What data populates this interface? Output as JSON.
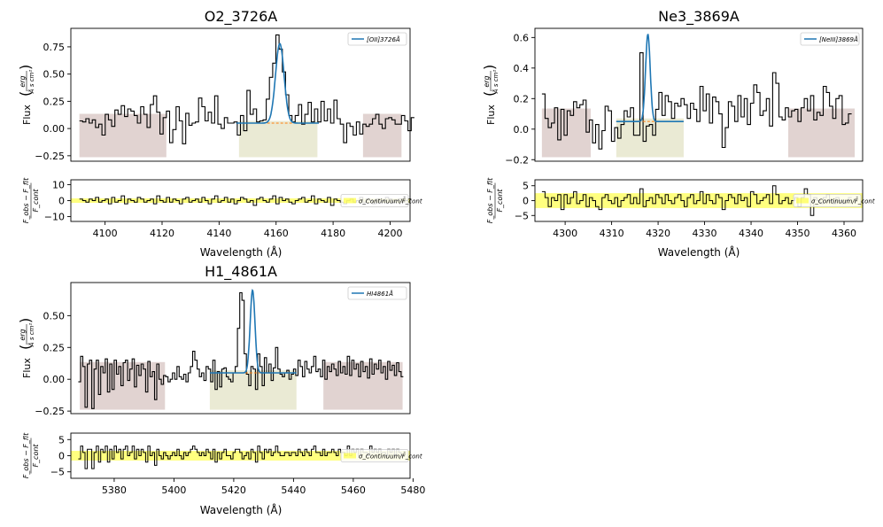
{
  "chart_data": [
    {
      "type": "line",
      "title": "O2_3726A",
      "xlabel": "Wavelength (Å)",
      "ylabel_main": "Flux",
      "ylabel_frac_num": "erg",
      "ylabel_frac_den": "Å s cm²",
      "resid_ylabel_num": "F_obs − F_fit",
      "resid_ylabel_den": "F_cont",
      "legend_main": "[OII]3726Å",
      "legend_resid": "σ_Continuum/F̄_cont",
      "legend_placement": "top-right",
      "xlim": [
        4088,
        4207
      ],
      "ylim": [
        -0.3,
        0.92
      ],
      "resid_ylim": [
        -13,
        13
      ],
      "x_ticks": [
        4100,
        4120,
        4140,
        4160,
        4180,
        4200
      ],
      "y_ticks": [
        -0.25,
        0.0,
        0.25,
        0.5,
        0.75
      ],
      "y_tick_labels": [
        "−0.25",
        "0.00",
        "0.25",
        "0.50",
        "0.75"
      ],
      "resid_ticks": [
        10,
        0,
        -10
      ],
      "resid_tick_labels": [
        "10",
        "0",
        "−10"
      ],
      "continuum_bands": [
        [
          4091,
          4121.5
        ],
        [
          4190.5,
          4204
        ]
      ],
      "line_band": [
        4147,
        4174.5
      ],
      "sigma_band": 1.4,
      "fit_continuum": 0.05,
      "fit_gaussian": {
        "center": 4161.3,
        "amplitude": 0.73,
        "sigma": 1.5,
        "range": [
          4146,
          4175
        ]
      },
      "spectrum": [
        {
          "x0": 4091,
          "dx": 1.13,
          "values": [
            0.07,
            0.06,
            0.09,
            0.05,
            0.08,
            0.01,
            0.04,
            -0.06,
            0.13,
            0.08,
            0.02,
            0.17,
            0.13,
            0.21,
            0.11,
            0.18,
            0.16,
            0.12,
            0.05,
            0.2,
            0.13,
            0.01,
            0.22,
            0.3,
            0.15,
            -0.05,
            0.1,
            0.16,
            -0.13,
            -0.01,
            0.2,
            0.07,
            -0.14,
            0.14,
            0.03,
            0.05,
            0.06,
            0.28,
            0.2,
            0.07,
            0.15,
            0.05,
            0.3,
            0.04,
            0.0,
            0.1,
            0.05,
            0.05,
            0.06,
            -0.06,
            0.12,
            -0.02,
            0.35,
            0.13,
            0.18,
            0.06,
            0.07,
            0.08,
            0.27,
            0.47,
            0.6,
            0.86,
            0.73,
            0.52,
            0.31,
            0.12,
            0.06,
            0.12,
            0.22,
            0.04,
            0.13,
            0.24,
            0.06,
            0.18,
            0.06,
            0.25,
            0.07,
            0.18,
            0.05,
            0.26,
            0.09,
            0.04,
            -0.13,
            0.05,
            0.02,
            -0.06,
            0.06,
            -0.05,
            0.04,
            0.02,
            0.04,
            0.09,
            0.13,
            0.04,
            0.0,
            0.09,
            0.1,
            0.08,
            0.04,
            0.04,
            0.12,
            0.07,
            -0.02,
            0.1
          ]
        }
      ],
      "residuals": [
        1,
        0,
        -1,
        1,
        0,
        2,
        -1,
        0,
        1,
        -2,
        2,
        -1,
        0,
        3,
        -2,
        1,
        0,
        -1,
        2,
        1,
        -1,
        0,
        1,
        -2,
        3,
        0,
        -1,
        2,
        -1,
        1,
        0,
        -2,
        1,
        2,
        -1,
        0,
        1,
        -1,
        2,
        0,
        -2,
        1,
        3,
        -1,
        0,
        2,
        -1,
        1,
        -2,
        0,
        2,
        1,
        -1,
        0,
        -3,
        1,
        2,
        0,
        -1,
        1,
        3,
        -2,
        2,
        0,
        1,
        -1,
        -2,
        0,
        1,
        2,
        -1,
        0,
        3,
        -2,
        1,
        0,
        -1,
        2,
        -3,
        1,
        0,
        -1,
        -2,
        0,
        1,
        -1,
        0,
        2,
        -1,
        1,
        0,
        -2,
        1,
        -1,
        0,
        2,
        1,
        -1,
        0,
        1,
        -1,
        0,
        1
      ]
    },
    {
      "type": "line",
      "title": "Ne3_3869A",
      "xlabel": "Wavelength (Å)",
      "ylabel_main": "Flux",
      "ylabel_frac_num": "erg",
      "ylabel_frac_den": "Å s cm²",
      "resid_ylabel_num": "F_obs − F_fit",
      "resid_ylabel_den": "F_cont",
      "legend_main": "[NeIII]3869Å",
      "legend_resid": "σ_Continuum/F̄_cont",
      "legend_placement": "top-right",
      "xlim": [
        4293.5,
        4364
      ],
      "ylim": [
        -0.21,
        0.66
      ],
      "resid_ylim": [
        -7,
        7
      ],
      "x_ticks": [
        4300,
        4310,
        4320,
        4330,
        4340,
        4350,
        4360
      ],
      "y_ticks": [
        -0.2,
        0.0,
        0.2,
        0.4,
        0.6
      ],
      "y_tick_labels": [
        "−0.2",
        "0.0",
        "0.2",
        "0.4",
        "0.6"
      ],
      "resid_ticks": [
        5,
        0,
        -5
      ],
      "resid_tick_labels": [
        "5",
        "0",
        "−5"
      ],
      "continuum_bands": [
        [
          4295,
          4305.5
        ],
        [
          4348,
          4362.3
        ]
      ],
      "line_band": [
        4311,
        4325.5
      ],
      "sigma_band": 2.5,
      "fit_continuum": 0.05,
      "fit_gaussian": {
        "center": 4317.8,
        "amplitude": 0.57,
        "sigma": 0.5,
        "range": [
          4311,
          4325.5
        ]
      },
      "spectrum": [
        {
          "x0": 4295,
          "dx": 0.68,
          "values": [
            0.23,
            0.07,
            0.01,
            0.04,
            0.14,
            -0.07,
            0.13,
            -0.04,
            0.12,
            0.09,
            0.18,
            0.14,
            0.16,
            0.19,
            -0.02,
            0.06,
            -0.09,
            0.03,
            -0.13,
            -0.01,
            0.15,
            0.12,
            -0.08,
            0.01,
            -0.06,
            0.03,
            0.12,
            0.08,
            0.14,
            -0.04,
            -0.04,
            0.5,
            -0.08,
            0.02,
            0.03,
            -0.04,
            0.13,
            0.24,
            0.09,
            0.22,
            0.18,
            0.07,
            0.17,
            0.15,
            0.2,
            0.16,
            0.07,
            0.17,
            0.13,
            0.05,
            0.28,
            0.12,
            0.23,
            0.04,
            0.21,
            0.18,
            0.1,
            -0.12,
            0.01,
            0.18,
            0.15,
            0.05,
            0.22,
            0.08,
            0.2,
            0.03,
            0.17,
            0.29,
            0.24,
            0.09,
            0.12,
            0.2,
            0.02,
            0.37,
            0.3,
            0.08,
            0.06,
            0.14,
            0.08,
            0.12,
            0.13,
            0.05,
            0.14,
            0.2,
            0.12,
            0.22,
            0.06,
            0.11,
            0.09,
            0.28,
            0.24,
            0.15,
            0.07,
            0.2,
            0.22,
            0.03,
            0.04,
            0.1
          ]
        }
      ],
      "residuals": [
        3,
        1,
        -2,
        1,
        0,
        2,
        -3,
        2,
        -1,
        1,
        3,
        -1,
        0,
        2,
        -2,
        1,
        0,
        -2,
        -3,
        1,
        2,
        0,
        -1,
        1,
        -2,
        0,
        1,
        2,
        -1,
        1,
        -1,
        4,
        -2,
        0,
        1,
        -1,
        2,
        1,
        -1,
        2,
        0,
        -1,
        1,
        2,
        0,
        -2,
        1,
        2,
        -1,
        0,
        3,
        -1,
        2,
        0,
        -1,
        2,
        1,
        -3,
        0,
        2,
        1,
        -1,
        2,
        0,
        1,
        -2,
        3,
        2,
        -1,
        0,
        1,
        2,
        -1,
        5,
        2,
        -1,
        0,
        1,
        -1,
        0,
        1,
        -2,
        1,
        4,
        2,
        -5,
        1,
        0,
        -1,
        1,
        2,
        0,
        -1,
        1,
        0,
        -1,
        0,
        1
      ]
    },
    {
      "type": "line",
      "title": "H1_4861A",
      "xlabel": "Wavelength (Å)",
      "ylabel_main": "Flux",
      "ylabel_frac_num": "erg",
      "ylabel_frac_den": "Å s cm²",
      "resid_ylabel_num": "F_obs − F_fit",
      "resid_ylabel_den": "F_cont",
      "legend_main": "HI4861Å",
      "legend_resid": "σ_Continuum/F̄_cont",
      "legend_placement": "top-right",
      "xlim": [
        5365.5,
        5479
      ],
      "ylim": [
        -0.27,
        0.76
      ],
      "resid_ylim": [
        -7,
        7
      ],
      "x_ticks": [
        5380,
        5400,
        5420,
        5440,
        5460,
        5480
      ],
      "y_ticks": [
        -0.25,
        0.0,
        0.25,
        0.5
      ],
      "y_tick_labels": [
        "−0.25",
        "0.00",
        "0.25",
        "0.50"
      ],
      "resid_ticks": [
        5,
        0,
        -5
      ],
      "resid_tick_labels": [
        "5",
        "0",
        "−5"
      ],
      "continuum_bands": [
        [
          5368.5,
          5397
        ],
        [
          5450,
          5476.5
        ]
      ],
      "line_band": [
        5412,
        5441
      ],
      "sigma_band": 1.5,
      "fit_continuum": 0.05,
      "fit_gaussian": {
        "center": 5426.3,
        "amplitude": 0.65,
        "sigma": 0.8,
        "range": [
          5412,
          5441
        ]
      },
      "spectrum": [
        {
          "x0": 5368,
          "dx": 0.75,
          "values": [
            -0.02,
            0.18,
            0.1,
            -0.22,
            0.12,
            0.15,
            -0.23,
            0.08,
            0.15,
            -0.12,
            0.1,
            0.05,
            0.16,
            -0.1,
            0.12,
            -0.08,
            0.15,
            0.04,
            0.1,
            -0.05,
            0.13,
            0.15,
            -0.01,
            0.08,
            0.16,
            -0.06,
            0.11,
            0.03,
            0.12,
            0.08,
            -0.1,
            0.14,
            0.02,
            0.06,
            -0.16,
            0.12,
            0.0,
            -0.04,
            0.03,
            0.02,
            -0.02,
            0.0,
            0.05,
            0.0,
            0.1,
            0.02,
            0.0,
            0.04,
            -0.02,
            0.05,
            0.1,
            0.22,
            0.15,
            0.08,
            0.02,
            0.05,
            -0.01,
            0.1,
            0.08,
            -0.02,
            0.15,
            -0.08,
            0.06,
            -0.06,
            0.08,
            0.09,
            0.02,
            0.0,
            -0.02,
            0.05,
            0.1,
            0.4,
            0.68,
            0.62,
            0.2,
            0.04,
            -0.05,
            0.1,
            0.08,
            -0.08,
            0.2,
            0.1,
            -0.05,
            0.17,
            0.05,
            0.12,
            -0.01,
            0.09,
            0.25,
            0.08,
            0.04,
            0.02,
            0.05,
            0.07,
            0.0,
            0.04,
            0.08,
            0.03,
            0.15,
            0.1,
            0.02,
            0.14,
            0.08,
            0.05,
            0.1,
            0.18,
            0.06,
            0.08,
            0.02,
            0.15,
            0.0,
            0.1,
            0.06,
            0.12,
            0.08,
            0.03,
            0.14,
            0.05,
            0.1,
            0.04,
            0.18,
            0.03,
            0.15,
            0.08,
            0.12,
            0.02,
            0.14,
            0.06,
            0.1,
            0.01,
            0.16,
            0.04,
            0.12,
            0.08,
            0.15,
            0.05,
            0.1,
            0.0,
            0.14,
            0.07,
            0.11,
            0.03,
            0.13,
            0.06,
            0.02
          ]
        }
      ],
      "residuals": [
        -1,
        3,
        1,
        -4,
        2,
        2,
        -4,
        1,
        3,
        -2,
        2,
        1,
        3,
        -2,
        2,
        -1,
        3,
        1,
        2,
        -1,
        2,
        3,
        0,
        1,
        3,
        -1,
        2,
        0,
        2,
        1,
        -2,
        3,
        0,
        1,
        -3,
        2,
        0,
        -1,
        1,
        0,
        -1,
        0,
        1,
        0,
        2,
        0,
        -1,
        1,
        0,
        1,
        2,
        3,
        2,
        1,
        0,
        1,
        0,
        2,
        1,
        -1,
        2,
        -2,
        1,
        -1,
        1,
        2,
        0,
        0,
        -1,
        1,
        2,
        2,
        1,
        -1,
        0,
        1,
        -1,
        2,
        1,
        -2,
        3,
        1,
        -1,
        2,
        1,
        2,
        0,
        1,
        3,
        1,
        0,
        0,
        1,
        1,
        0,
        1,
        1,
        0,
        2,
        1,
        0,
        2,
        1,
        0,
        2,
        3,
        1,
        1,
        0,
        2,
        0,
        1,
        1,
        2,
        1,
        0,
        2,
        1,
        1,
        0,
        3,
        0,
        2,
        1,
        2,
        0,
        2,
        1,
        1,
        0,
        3,
        1,
        2,
        1,
        2,
        1,
        1,
        0,
        2,
        1,
        2,
        0,
        2,
        1,
        0
      ]
    }
  ]
}
